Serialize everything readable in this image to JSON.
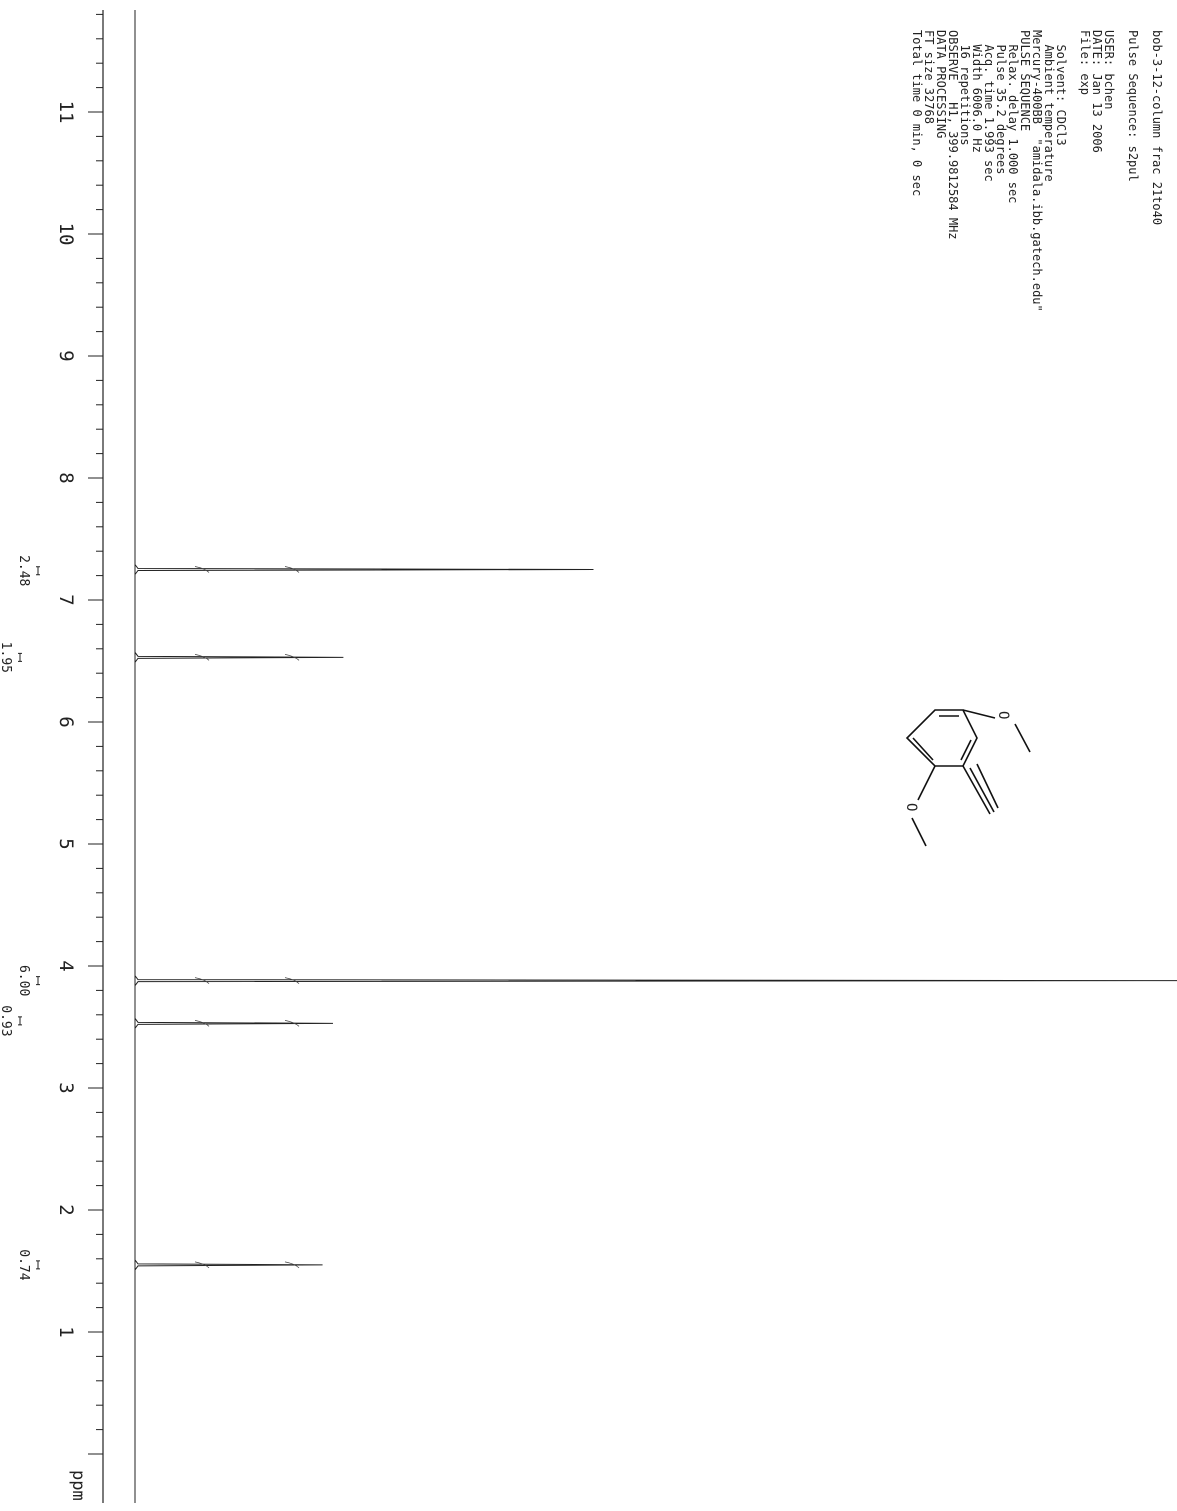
{
  "chart_data": {
    "type": "line",
    "xlabel": "ppm",
    "xlim": [
      12,
      0
    ],
    "x_ticks": [
      11,
      10,
      9,
      8,
      7,
      6,
      5,
      4,
      3,
      2,
      1
    ],
    "peaks": [
      {
        "ppm": 7.25,
        "height": 0.44
      },
      {
        "ppm": 6.53,
        "height": 0.2
      },
      {
        "ppm": 3.88,
        "height": 1.0
      },
      {
        "ppm": 3.53,
        "height": 0.19
      },
      {
        "ppm": 1.55,
        "height": 0.18
      }
    ],
    "integrals": [
      {
        "ppm": 7.24,
        "value": "2.48"
      },
      {
        "ppm": 6.53,
        "value": "1.95"
      },
      {
        "ppm": 3.88,
        "value": "6.00"
      },
      {
        "ppm": 3.55,
        "value": "0.93"
      },
      {
        "ppm": 1.55,
        "value": "0.74"
      }
    ]
  },
  "params": {
    "lines": [
      "bob-3-12-column frac 21to40",
      "",
      "Pulse Sequence: s2pul",
      "",
      "USER: bchen",
      "DATE: Jan 13 2006",
      "File: exp",
      "",
      "  Solvent: CDCl3",
      "  Ambient temperature",
      "Mercury-400BB  \"amidala.ibb.gatech.edu\"",
      "PULSE SEQUENCE",
      "  Relax. delay 1.000 sec",
      "  Pulse 35.2 degrees",
      "  Acq. time 1.993 sec",
      "  Width 6006.0 Hz",
      "  16 repetitions",
      "OBSERVE   H1, 399.9812584 MHz",
      "DATA PROCESSING",
      "FT size 32768",
      "Total time 0 min, 0 sec"
    ]
  },
  "molecule": {
    "name": "2-ethynyl-1,3-dimethoxybenzene structure",
    "atom_labels": [
      "O",
      "O"
    ]
  },
  "colors": {
    "ink": "#222222",
    "background": "#ffffff"
  }
}
